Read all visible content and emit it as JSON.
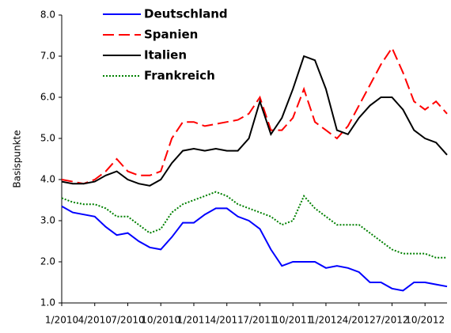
{
  "chart_data": {
    "type": "line",
    "y_label": "Basispunkte",
    "categories": [
      "1/2010",
      null,
      null,
      "4/2010",
      null,
      null,
      "7/2010",
      null,
      null,
      "10/2010",
      null,
      null,
      "1/2011",
      null,
      null,
      "4/2011",
      null,
      null,
      "7/2011",
      null,
      null,
      "10/2011",
      null,
      null,
      "1/2012",
      null,
      null,
      "4/2012",
      null,
      null,
      "7/2012",
      null,
      null,
      "10/2012",
      null,
      null
    ],
    "series": [
      {
        "name": "Deutschland",
        "color": "#0000ff",
        "dash": "solid",
        "values": [
          3.35,
          3.2,
          3.15,
          3.1,
          2.85,
          2.65,
          2.7,
          2.5,
          2.35,
          2.3,
          2.6,
          2.95,
          2.95,
          3.15,
          3.3,
          3.3,
          3.1,
          3.0,
          2.8,
          2.3,
          1.9,
          2.0,
          2.0,
          2.0,
          1.85,
          1.9,
          1.85,
          1.75,
          1.5,
          1.5,
          1.35,
          1.3,
          1.5,
          1.5,
          1.45,
          1.4
        ]
      },
      {
        "name": "Spanien",
        "color": "#ff0000",
        "dash": "dashed",
        "values": [
          4.0,
          3.95,
          3.9,
          4.0,
          4.2,
          4.5,
          4.2,
          4.1,
          4.1,
          4.2,
          5.0,
          5.4,
          5.4,
          5.3,
          5.35,
          5.4,
          5.45,
          5.6,
          6.0,
          5.2,
          5.2,
          5.5,
          6.2,
          5.4,
          5.2,
          5.0,
          5.3,
          5.8,
          6.3,
          6.8,
          7.2,
          6.6,
          5.9,
          5.7,
          5.9,
          5.6
        ]
      },
      {
        "name": "Italien",
        "color": "#000000",
        "dash": "solid",
        "values": [
          3.95,
          3.9,
          3.9,
          3.95,
          4.1,
          4.2,
          4.0,
          3.9,
          3.85,
          4.0,
          4.4,
          4.7,
          4.75,
          4.7,
          4.75,
          4.7,
          4.7,
          5.0,
          5.9,
          5.1,
          5.5,
          6.2,
          7.0,
          6.9,
          6.2,
          5.2,
          5.1,
          5.5,
          5.8,
          6.0,
          6.0,
          5.7,
          5.2,
          5.0,
          4.9,
          4.6
        ]
      },
      {
        "name": "Frankreich",
        "color": "#008000",
        "dash": "dotted",
        "values": [
          3.55,
          3.45,
          3.4,
          3.4,
          3.3,
          3.1,
          3.1,
          2.9,
          2.7,
          2.8,
          3.2,
          3.4,
          3.5,
          3.6,
          3.7,
          3.6,
          3.4,
          3.3,
          3.2,
          3.1,
          2.9,
          3.0,
          3.6,
          3.3,
          3.1,
          2.9,
          2.9,
          2.9,
          2.7,
          2.5,
          2.3,
          2.2,
          2.2,
          2.2,
          2.1,
          2.1
        ]
      }
    ],
    "ylim": [
      1,
      8
    ],
    "yticks": [
      {
        "value": 1,
        "label": "1.0"
      },
      {
        "value": 2,
        "label": "2.0"
      },
      {
        "value": 3,
        "label": "3.0"
      },
      {
        "value": 4,
        "label": "4.0"
      },
      {
        "value": 5,
        "label": "5.0"
      },
      {
        "value": 6,
        "label": "6.0"
      },
      {
        "value": 7,
        "label": "7.0"
      },
      {
        "value": 8,
        "label": "8.0"
      }
    ],
    "grid": false,
    "legend": "top-left"
  }
}
